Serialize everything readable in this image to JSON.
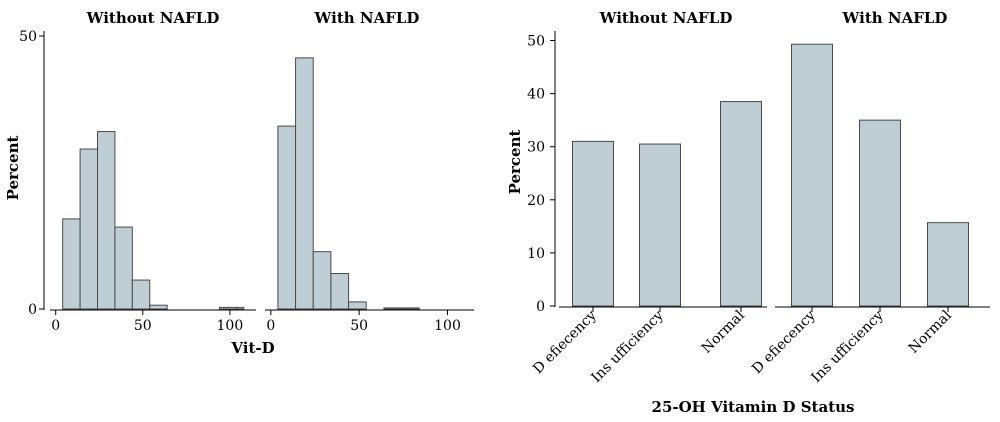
{
  "chart_data": [
    {
      "type": "bar",
      "subtype": "histogram",
      "ylabel": "Percent",
      "xlabel": "Vit-D",
      "ylim": [
        0,
        50
      ],
      "yticks": [
        0,
        50
      ],
      "xlim": [
        -5,
        115
      ],
      "xticks": [
        0,
        50,
        100
      ],
      "bin_width": 10,
      "panels": [
        {
          "title": "Without NAFLD",
          "bins": [
            {
              "x0": 4,
              "x1": 14,
              "value": 16.5
            },
            {
              "x0": 14,
              "x1": 24,
              "value": 29.3
            },
            {
              "x0": 24,
              "x1": 34,
              "value": 32.5
            },
            {
              "x0": 34,
              "x1": 44,
              "value": 15.0
            },
            {
              "x0": 44,
              "x1": 54,
              "value": 5.3
            },
            {
              "x0": 54,
              "x1": 64,
              "value": 0.7
            },
            {
              "x0": 64,
              "x1": 74,
              "value": 0
            },
            {
              "x0": 74,
              "x1": 84,
              "value": 0
            },
            {
              "x0": 84,
              "x1": 94,
              "value": 0
            },
            {
              "x0": 94,
              "x1": 104,
              "value": 0.3
            },
            {
              "x0": 104,
              "x1": 108,
              "value": 0.3
            }
          ]
        },
        {
          "title": "With NAFLD",
          "bins": [
            {
              "x0": 4,
              "x1": 14,
              "value": 33.5
            },
            {
              "x0": 14,
              "x1": 24,
              "value": 46.0
            },
            {
              "x0": 24,
              "x1": 34,
              "value": 10.5
            },
            {
              "x0": 34,
              "x1": 44,
              "value": 6.5
            },
            {
              "x0": 44,
              "x1": 54,
              "value": 1.3
            },
            {
              "x0": 54,
              "x1": 64,
              "value": 0
            },
            {
              "x0": 64,
              "x1": 74,
              "value": 0.2
            },
            {
              "x0": 74,
              "x1": 84,
              "value": 0.2
            },
            {
              "x0": 84,
              "x1": 94,
              "value": 0
            }
          ]
        }
      ]
    },
    {
      "type": "bar",
      "ylabel": "Percent",
      "xlabel": "25-OH Vitamin D Status",
      "ylim": [
        0,
        52
      ],
      "yticks": [
        0,
        10,
        20,
        30,
        40,
        50
      ],
      "categories": [
        "D efiecency",
        "Ins ufficiency",
        "Normal"
      ],
      "panels": [
        {
          "title": "Without NAFLD",
          "values": [
            31.0,
            30.5,
            38.5
          ]
        },
        {
          "title": "With NAFLD",
          "values": [
            49.3,
            35.0,
            15.7
          ]
        }
      ]
    }
  ]
}
